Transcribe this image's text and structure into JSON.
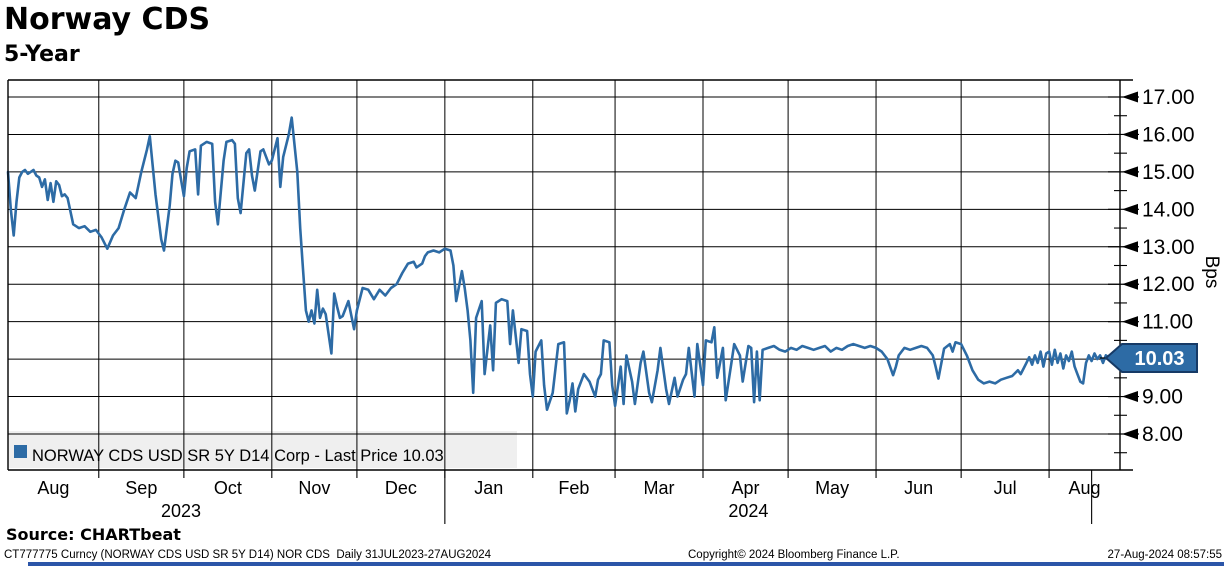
{
  "header": {
    "title": "Norway CDS",
    "subtitle": "5-Year"
  },
  "legend": {
    "swatch_color": "#2d6ba5",
    "label": "NORWAY CDS USD SR 5Y D14 Corp - Last Price 10.03"
  },
  "source_label": "Source: CHARTbeat",
  "footer": {
    "left": "CT777775 Curncy (NORWAY CDS USD SR 5Y D14) NOR CDS  Daily 31JUL2023-27AUG2024",
    "center": "Copyright© 2024 Bloomberg Finance L.P.",
    "right": "27-Aug-2024 08:57:55"
  },
  "colors": {
    "line": "#2d6ba5",
    "marker_fill": "#2d6ba5",
    "marker_border": "#163a66",
    "marker_text": "#ffffff",
    "grid": "#000000",
    "legend_bg": "#efefef",
    "bottom_bar": "#2b55a8"
  },
  "chart_data": {
    "type": "line",
    "title": "Norway CDS 5-Year",
    "xlabel": "",
    "ylabel": "Bps",
    "ylim": [
      7.0,
      17.45
    ],
    "yticks": [
      8,
      9,
      10,
      11,
      12,
      13,
      14,
      15,
      16,
      17
    ],
    "ytick_minor_step": 0.5,
    "grid": true,
    "legend_position": "bottom-left",
    "last_price": 10.03,
    "x_axis": {
      "months": [
        "Aug",
        "Sep",
        "Oct",
        "Nov",
        "Dec",
        "Jan",
        "Feb",
        "Mar",
        "Apr",
        "May",
        "Jun",
        "Jul",
        "Aug"
      ],
      "month_bound_days": [
        0,
        32,
        62,
        93,
        123,
        154,
        185,
        214,
        245,
        275,
        306,
        336,
        367,
        392
      ],
      "total_days": 392,
      "year_labels": [
        {
          "text": "2023",
          "day": 61
        },
        {
          "text": "2024",
          "day": 261
        }
      ],
      "year_divider_days": [
        154,
        382
      ],
      "range_label": "31JUL2023-27AUG2024"
    },
    "series": [
      {
        "name": "NORWAY CDS USD SR 5Y D14 Corp",
        "color": "#2d6ba5",
        "points": [
          [
            0,
            15.0
          ],
          [
            1,
            14.0
          ],
          [
            2,
            13.3
          ],
          [
            3,
            14.2
          ],
          [
            4,
            14.85
          ],
          [
            5,
            15.0
          ],
          [
            6,
            15.05
          ],
          [
            7,
            14.95
          ],
          [
            8,
            15.0
          ],
          [
            9,
            15.05
          ],
          [
            10,
            14.9
          ],
          [
            11,
            14.85
          ],
          [
            12,
            14.6
          ],
          [
            13,
            14.8
          ],
          [
            14,
            14.25
          ],
          [
            15,
            14.7
          ],
          [
            16,
            14.2
          ],
          [
            17,
            14.75
          ],
          [
            18,
            14.65
          ],
          [
            19,
            14.35
          ],
          [
            20,
            14.4
          ],
          [
            21,
            14.3
          ],
          [
            23,
            13.6
          ],
          [
            25,
            13.5
          ],
          [
            27,
            13.55
          ],
          [
            29,
            13.4
          ],
          [
            31,
            13.45
          ],
          [
            33,
            13.25
          ],
          [
            35,
            12.95
          ],
          [
            37,
            13.3
          ],
          [
            39,
            13.5
          ],
          [
            41,
            14.0
          ],
          [
            43,
            14.45
          ],
          [
            45,
            14.3
          ],
          [
            47,
            15.0
          ],
          [
            49,
            15.6
          ],
          [
            50,
            15.95
          ],
          [
            52,
            14.4
          ],
          [
            54,
            13.2
          ],
          [
            55,
            12.9
          ],
          [
            57,
            14.1
          ],
          [
            58,
            14.95
          ],
          [
            59,
            15.3
          ],
          [
            60,
            15.25
          ],
          [
            61,
            14.8
          ],
          [
            62,
            14.35
          ],
          [
            63,
            15.1
          ],
          [
            64,
            15.55
          ],
          [
            66,
            15.6
          ],
          [
            67,
            14.4
          ],
          [
            68,
            15.7
          ],
          [
            70,
            15.8
          ],
          [
            72,
            15.75
          ],
          [
            73,
            14.2
          ],
          [
            74,
            13.6
          ],
          [
            76,
            15.3
          ],
          [
            77,
            15.8
          ],
          [
            79,
            15.85
          ],
          [
            80,
            15.75
          ],
          [
            81,
            14.3
          ],
          [
            82,
            13.9
          ],
          [
            84,
            15.5
          ],
          [
            85,
            15.6
          ],
          [
            86,
            14.9
          ],
          [
            87,
            14.5
          ],
          [
            89,
            15.55
          ],
          [
            90,
            15.6
          ],
          [
            92,
            15.2
          ],
          [
            93,
            15.3
          ],
          [
            95,
            15.9
          ],
          [
            96,
            14.6
          ],
          [
            97,
            15.4
          ],
          [
            99,
            16.0
          ],
          [
            100,
            16.45
          ],
          [
            102,
            15.0
          ],
          [
            103,
            13.5
          ],
          [
            104,
            12.4
          ],
          [
            105,
            11.3
          ],
          [
            106,
            11.0
          ],
          [
            107,
            11.3
          ],
          [
            108,
            10.95
          ],
          [
            109,
            11.85
          ],
          [
            110,
            11.1
          ],
          [
            111,
            11.35
          ],
          [
            112,
            11.2
          ],
          [
            114,
            10.15
          ],
          [
            115,
            11.75
          ],
          [
            116,
            11.4
          ],
          [
            117,
            11.1
          ],
          [
            118,
            11.15
          ],
          [
            120,
            11.55
          ],
          [
            122,
            10.8
          ],
          [
            123,
            11.3
          ],
          [
            125,
            11.9
          ],
          [
            127,
            11.85
          ],
          [
            129,
            11.6
          ],
          [
            131,
            11.85
          ],
          [
            133,
            11.7
          ],
          [
            135,
            11.9
          ],
          [
            137,
            12.0
          ],
          [
            139,
            12.3
          ],
          [
            141,
            12.55
          ],
          [
            143,
            12.6
          ],
          [
            144,
            12.45
          ],
          [
            146,
            12.55
          ],
          [
            147,
            12.75
          ],
          [
            148,
            12.85
          ],
          [
            150,
            12.9
          ],
          [
            152,
            12.85
          ],
          [
            154,
            12.95
          ],
          [
            156,
            12.9
          ],
          [
            157,
            12.5
          ],
          [
            158,
            11.55
          ],
          [
            160,
            12.35
          ],
          [
            161,
            11.9
          ],
          [
            162,
            11.3
          ],
          [
            163,
            10.5
          ],
          [
            164,
            9.1
          ],
          [
            165,
            11.1
          ],
          [
            167,
            11.55
          ],
          [
            168,
            9.6
          ],
          [
            170,
            10.9
          ],
          [
            171,
            9.7
          ],
          [
            172,
            11.5
          ],
          [
            174,
            11.6
          ],
          [
            176,
            11.55
          ],
          [
            177,
            10.4
          ],
          [
            178,
            11.3
          ],
          [
            179,
            10.6
          ],
          [
            180,
            9.9
          ],
          [
            181,
            10.8
          ],
          [
            183,
            10.75
          ],
          [
            184,
            9.6
          ],
          [
            185,
            9.0
          ],
          [
            186,
            10.2
          ],
          [
            188,
            10.5
          ],
          [
            189,
            9.3
          ],
          [
            190,
            8.65
          ],
          [
            192,
            9.1
          ],
          [
            193,
            9.75
          ],
          [
            194,
            10.4
          ],
          [
            196,
            10.45
          ],
          [
            197,
            8.55
          ],
          [
            198,
            8.9
          ],
          [
            199,
            9.35
          ],
          [
            200,
            8.6
          ],
          [
            201,
            9.2
          ],
          [
            203,
            9.6
          ],
          [
            205,
            9.4
          ],
          [
            207,
            9.0
          ],
          [
            208,
            9.45
          ],
          [
            209,
            9.6
          ],
          [
            210,
            10.5
          ],
          [
            212,
            10.45
          ],
          [
            213,
            9.3
          ],
          [
            214,
            8.75
          ],
          [
            216,
            9.8
          ],
          [
            217,
            8.8
          ],
          [
            218,
            10.1
          ],
          [
            220,
            9.4
          ],
          [
            221,
            8.8
          ],
          [
            223,
            9.9
          ],
          [
            224,
            10.2
          ],
          [
            226,
            9.1
          ],
          [
            227,
            8.85
          ],
          [
            229,
            9.7
          ],
          [
            230,
            10.3
          ],
          [
            232,
            9.2
          ],
          [
            233,
            8.8
          ],
          [
            235,
            9.5
          ],
          [
            236,
            9.0
          ],
          [
            238,
            9.45
          ],
          [
            239,
            9.6
          ],
          [
            240,
            10.3
          ],
          [
            242,
            9.0
          ],
          [
            243,
            10.4
          ],
          [
            245,
            9.3
          ],
          [
            246,
            10.5
          ],
          [
            248,
            10.45
          ],
          [
            249,
            10.85
          ],
          [
            250,
            9.5
          ],
          [
            252,
            10.3
          ],
          [
            253,
            8.9
          ],
          [
            255,
            9.9
          ],
          [
            256,
            10.4
          ],
          [
            258,
            10.1
          ],
          [
            259,
            9.4
          ],
          [
            261,
            10.35
          ],
          [
            262,
            10.3
          ],
          [
            263,
            8.85
          ],
          [
            264,
            10.2
          ],
          [
            265,
            8.9
          ],
          [
            266,
            10.25
          ],
          [
            268,
            10.3
          ],
          [
            270,
            10.35
          ],
          [
            272,
            10.25
          ],
          [
            274,
            10.2
          ],
          [
            276,
            10.3
          ],
          [
            278,
            10.25
          ],
          [
            280,
            10.35
          ],
          [
            282,
            10.3
          ],
          [
            284,
            10.25
          ],
          [
            286,
            10.3
          ],
          [
            288,
            10.35
          ],
          [
            290,
            10.2
          ],
          [
            292,
            10.3
          ],
          [
            294,
            10.25
          ],
          [
            296,
            10.35
          ],
          [
            298,
            10.4
          ],
          [
            300,
            10.35
          ],
          [
            302,
            10.3
          ],
          [
            304,
            10.35
          ],
          [
            306,
            10.3
          ],
          [
            308,
            10.2
          ],
          [
            310,
            10.0
          ],
          [
            312,
            9.57
          ],
          [
            313,
            9.8
          ],
          [
            314,
            10.1
          ],
          [
            316,
            10.3
          ],
          [
            318,
            10.25
          ],
          [
            320,
            10.3
          ],
          [
            322,
            10.35
          ],
          [
            324,
            10.3
          ],
          [
            326,
            10.1
          ],
          [
            327,
            9.8
          ],
          [
            328,
            9.48
          ],
          [
            330,
            10.28
          ],
          [
            332,
            10.4
          ],
          [
            333,
            10.2
          ],
          [
            334,
            10.45
          ],
          [
            336,
            10.4
          ],
          [
            338,
            10.1
          ],
          [
            340,
            9.7
          ],
          [
            342,
            9.45
          ],
          [
            344,
            9.35
          ],
          [
            346,
            9.4
          ],
          [
            348,
            9.35
          ],
          [
            350,
            9.45
          ],
          [
            352,
            9.5
          ],
          [
            354,
            9.55
          ],
          [
            356,
            9.7
          ],
          [
            357,
            9.6
          ],
          [
            358,
            9.75
          ],
          [
            359,
            9.9
          ],
          [
            360,
            10.05
          ],
          [
            361,
            9.85
          ],
          [
            362,
            10.1
          ],
          [
            363,
            9.9
          ],
          [
            364,
            10.2
          ],
          [
            365,
            9.8
          ],
          [
            366,
            10.15
          ],
          [
            367,
            10.2
          ],
          [
            368,
            9.85
          ],
          [
            369,
            10.25
          ],
          [
            370,
            9.9
          ],
          [
            371,
            10.15
          ],
          [
            372,
            9.75
          ],
          [
            373,
            10.1
          ],
          [
            374,
            9.95
          ],
          [
            375,
            10.2
          ],
          [
            376,
            9.8
          ],
          [
            377,
            9.6
          ],
          [
            378,
            9.4
          ],
          [
            379,
            9.35
          ],
          [
            380,
            9.9
          ],
          [
            381,
            10.1
          ],
          [
            382,
            9.95
          ],
          [
            383,
            10.15
          ],
          [
            384,
            10.0
          ],
          [
            385,
            10.1
          ],
          [
            386,
            9.9
          ],
          [
            387,
            10.1
          ],
          [
            388,
            10.05
          ],
          [
            389,
            9.95
          ],
          [
            390,
            10.1
          ],
          [
            391,
            9.98
          ],
          [
            392,
            10.03
          ]
        ]
      }
    ]
  }
}
